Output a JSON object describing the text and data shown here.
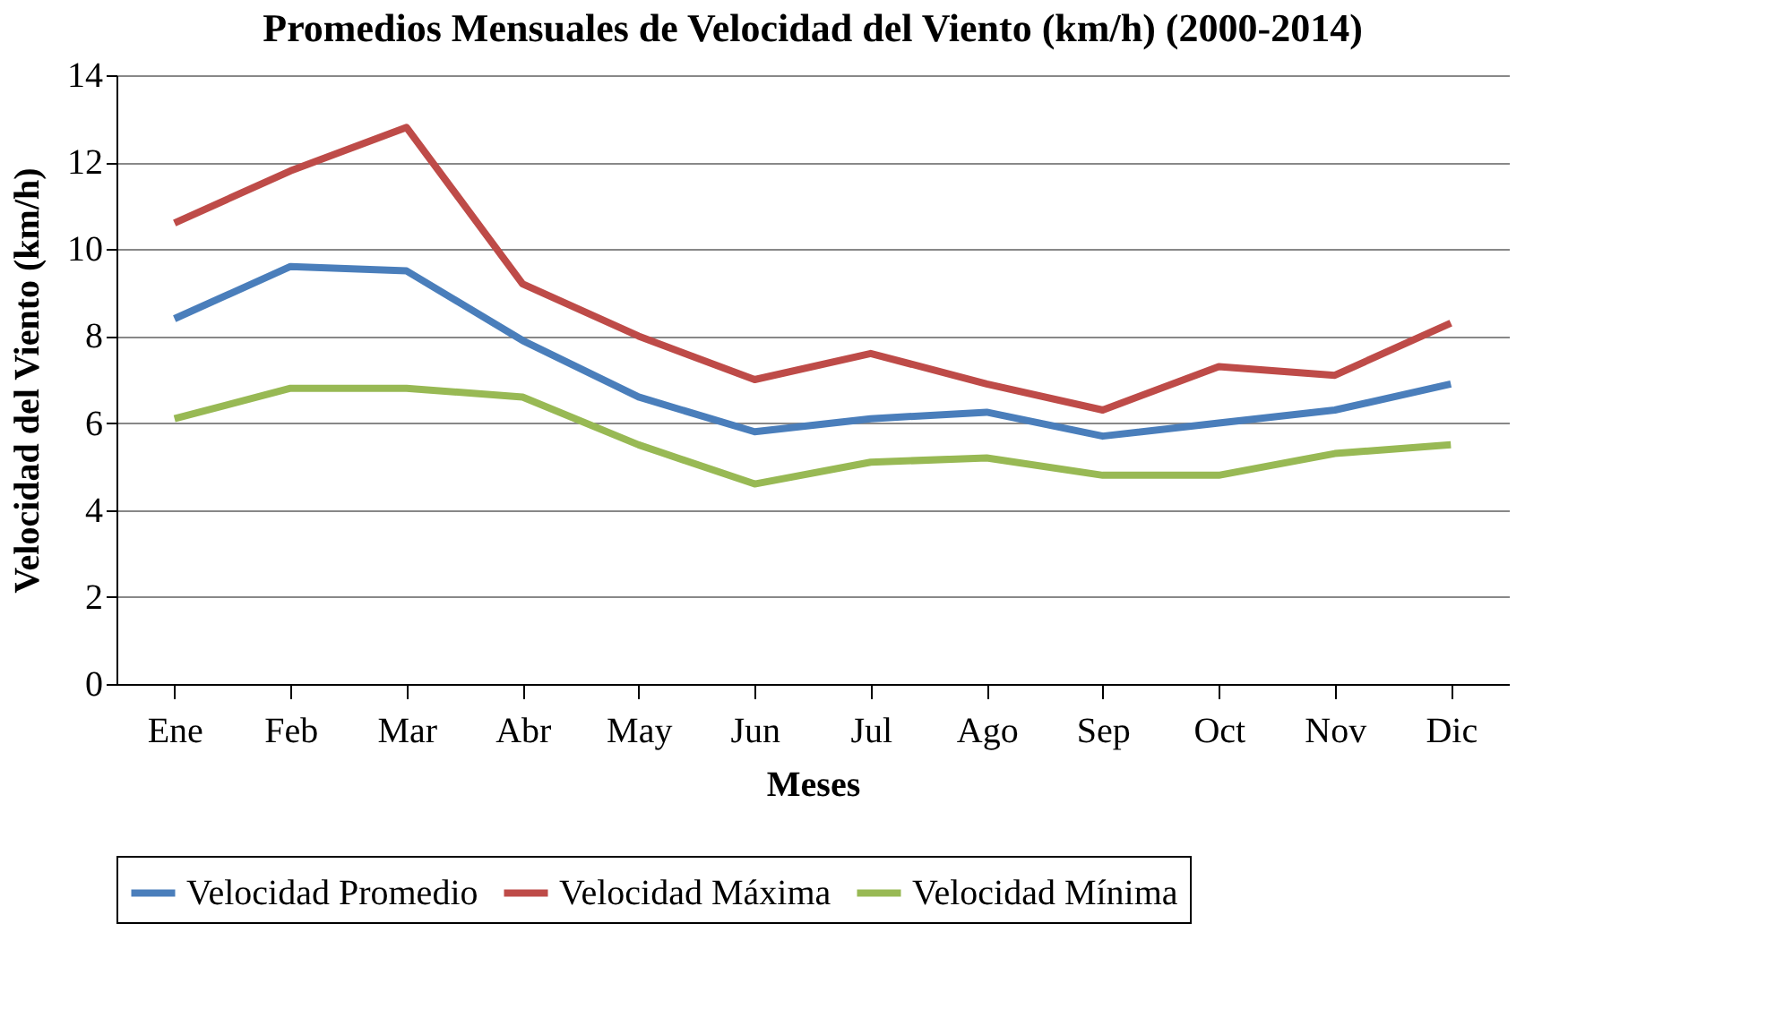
{
  "chart_data": {
    "type": "line",
    "title": "Promedios Mensuales de Velocidad del Viento (km/h) (2000-2014)",
    "xlabel": "Meses",
    "ylabel": "Velocidad del Viento (km/h)",
    "categories": [
      "Ene",
      "Feb",
      "Mar",
      "Abr",
      "May",
      "Jun",
      "Jul",
      "Ago",
      "Sep",
      "Oct",
      "Nov",
      "Dic"
    ],
    "series": [
      {
        "name": "Velocidad Promedio",
        "color": "#4a7ebb",
        "values": [
          8.4,
          9.6,
          9.5,
          7.9,
          6.6,
          5.8,
          6.1,
          6.25,
          5.7,
          6.0,
          6.3,
          6.9
        ]
      },
      {
        "name": "Velocidad Máxima",
        "color": "#be4b48",
        "values": [
          10.6,
          11.8,
          12.8,
          9.2,
          8.0,
          7.0,
          7.6,
          6.9,
          6.3,
          7.3,
          7.1,
          8.3
        ]
      },
      {
        "name": "Velocidad Mínima",
        "color": "#98b954",
        "values": [
          6.1,
          6.8,
          6.8,
          6.6,
          5.5,
          4.6,
          5.1,
          5.2,
          4.8,
          4.8,
          5.3,
          5.5
        ]
      }
    ],
    "ylim": [
      0,
      14
    ],
    "yticks": [
      0,
      2,
      4,
      6,
      8,
      10,
      12,
      14
    ],
    "grid": "y",
    "legend": "bottom",
    "marker": "none",
    "line_style": "solid"
  }
}
